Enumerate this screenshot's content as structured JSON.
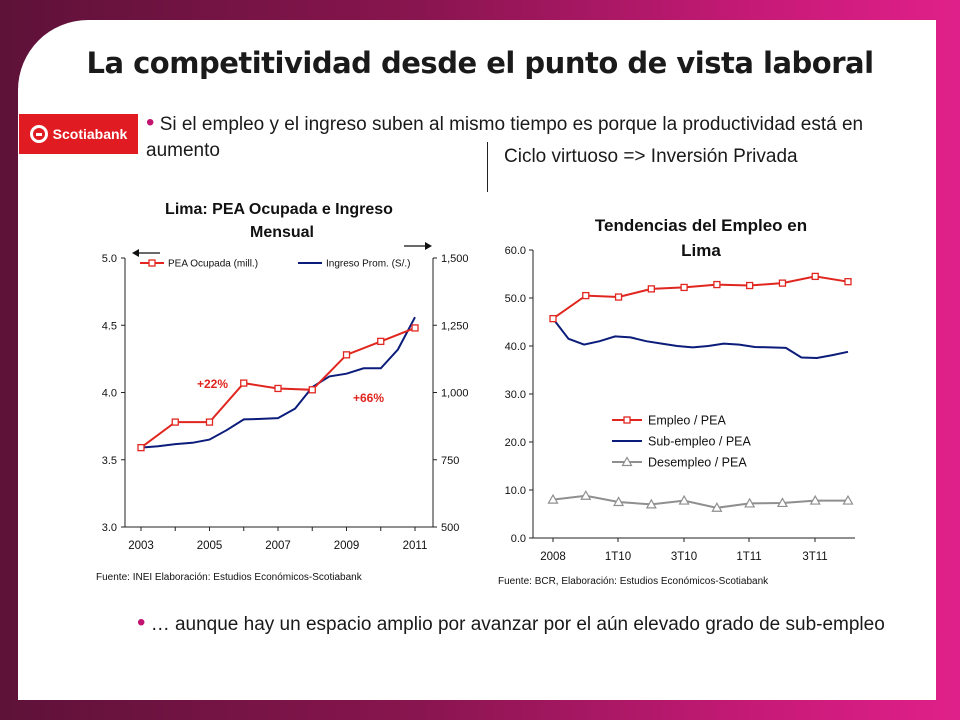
{
  "title": "La competitividad desde el punto de vista laboral",
  "brand": {
    "name": "Scotiabank",
    "color": "#e11b22",
    "logo_icon": "scotiabank-s-icon"
  },
  "bullets": {
    "first": "Si el empleo y el ingreso suben al mismo tiempo es porque la productividad está en aumento",
    "second": "… aunque hay un espacio amplio por avanzar por el aún elevado grado de sub-empleo"
  },
  "side_note": "Ciclo virtuoso => Inversión Privada",
  "colors": {
    "red": "#e0261f",
    "navy": "#0b1c7a",
    "gray": "#8f8f8f",
    "annotation": "#e0261f"
  },
  "chart_data": [
    {
      "type": "line",
      "title": "Lima: PEA Ocupada e Ingreso Mensual",
      "x": [
        2003,
        2004,
        2005,
        2006,
        2007,
        2008,
        2009,
        2010,
        2011
      ],
      "x_ticks": [
        "2003",
        "2005",
        "2007",
        "2009",
        "2011"
      ],
      "ylim": [
        3.0,
        5.0
      ],
      "y_ticks": [
        "3.0",
        "3.5",
        "4.0",
        "4.5",
        "5.0"
      ],
      "y2lim": [
        500,
        1500
      ],
      "y2_ticks": [
        "500",
        "750",
        "1,000",
        "1,250",
        "1,500"
      ],
      "legend": "top",
      "grid": false,
      "series": [
        {
          "name": "PEA Ocupada (mill.)",
          "axis": "left",
          "color": "#e0261f",
          "marker": "square",
          "values": [
            3.59,
            3.78,
            3.78,
            4.07,
            4.03,
            4.02,
            4.28,
            4.38,
            4.48
          ]
        },
        {
          "name": "Ingreso Prom. (S/.)",
          "axis": "right",
          "color": "#0b1c7a",
          "marker": "none",
          "x": [
            2003,
            2003.5,
            2004,
            2004.5,
            2005,
            2005.5,
            2006,
            2006.5,
            2007,
            2007.5,
            2008,
            2008.5,
            2009,
            2009.5,
            2010,
            2010.5,
            2011
          ],
          "values": [
            795,
            800,
            808,
            813,
            825,
            860,
            900,
            902,
            905,
            940,
            1020,
            1060,
            1070,
            1090,
            1090,
            1160,
            1280
          ]
        }
      ],
      "annotations": [
        "+22%",
        "+66%"
      ],
      "source": "Fuente: INEI Elaboración: Estudios Económicos-Scotiabank"
    },
    {
      "type": "line",
      "title": "Tendencias del Empleo en Lima",
      "x_ticks": [
        "2008",
        "1T10",
        "3T10",
        "1T11",
        "3T11"
      ],
      "ylim": [
        0,
        60
      ],
      "y_ticks": [
        "0.0",
        "10.0",
        "20.0",
        "30.0",
        "40.0",
        "50.0",
        "60.0"
      ],
      "legend": "center-left",
      "grid": false,
      "series": [
        {
          "name": "Empleo / PEA",
          "color": "#e0261f",
          "marker": "square",
          "values": [
            45.7,
            50.5,
            50.2,
            51.9,
            52.2,
            52.8,
            52.6,
            53.1,
            54.5,
            53.4
          ]
        },
        {
          "name": "Sub-empleo / PEA",
          "color": "#0b1c7a",
          "marker": "none",
          "values": [
            45.7,
            41.5,
            40.3,
            41.0,
            42.0,
            41.8,
            41.0,
            40.5,
            40.0,
            39.7,
            40.0,
            40.5,
            40.3,
            39.8,
            39.7,
            39.6,
            37.6,
            37.5,
            38.1,
            38.8
          ]
        },
        {
          "name": "Desempleo / PEA",
          "color": "#8f8f8f",
          "marker": "triangle",
          "values": [
            8.0,
            8.8,
            7.5,
            7.0,
            7.8,
            6.3,
            7.2,
            7.3,
            7.8,
            7.8
          ]
        }
      ],
      "source": "Fuente: BCR, Elaboración: Estudios Económicos-Scotiabank"
    }
  ]
}
